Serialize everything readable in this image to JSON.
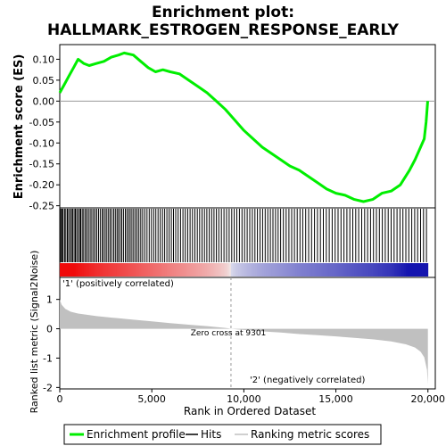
{
  "chart_data": {
    "type": "line",
    "title": "Enrichment plot:\nHALLMARK_ESTROGEN_RESPONSE_EARLY",
    "title_lines": [
      "Enrichment plot:",
      "HALLMARK_ESTROGEN_RESPONSE_EARLY"
    ],
    "top_panel": {
      "ylabel": "Enrichment score (ES)",
      "ylim": [
        -0.255,
        0.135
      ],
      "yticks": [
        0.1,
        0.05,
        0.0,
        -0.05,
        -0.1,
        -0.15,
        -0.2,
        -0.25
      ],
      "ytick_labels": [
        "0.10",
        "0.05",
        "0.00",
        "-0.05",
        "-0.10",
        "-0.15",
        "-0.20",
        "-0.25"
      ],
      "series": [
        {
          "name": "Enrichment profile",
          "color": "#00ee00",
          "x": [
            0,
            250,
            500,
            750,
            1000,
            1300,
            1600,
            2000,
            2400,
            2800,
            3200,
            3500,
            4000,
            4400,
            4800,
            5200,
            5600,
            6000,
            6500,
            7000,
            7500,
            8000,
            8500,
            9000,
            9500,
            10000,
            10500,
            11000,
            11500,
            12000,
            12500,
            13000,
            13500,
            14000,
            14500,
            15000,
            15500,
            16000,
            16500,
            17000,
            17500,
            18000,
            18500,
            19000,
            19300,
            19600,
            19800,
            19900,
            19990
          ],
          "values": [
            0.02,
            0.04,
            0.06,
            0.08,
            0.1,
            0.09,
            0.085,
            0.09,
            0.095,
            0.105,
            0.11,
            0.115,
            0.11,
            0.095,
            0.08,
            0.07,
            0.075,
            0.07,
            0.065,
            0.05,
            0.035,
            0.02,
            0.0,
            -0.02,
            -0.045,
            -0.07,
            -0.09,
            -0.11,
            -0.125,
            -0.14,
            -0.155,
            -0.165,
            -0.18,
            -0.195,
            -0.21,
            -0.22,
            -0.225,
            -0.235,
            -0.24,
            -0.235,
            -0.22,
            -0.215,
            -0.2,
            -0.165,
            -0.14,
            -0.11,
            -0.09,
            -0.05,
            0.0
          ]
        }
      ]
    },
    "hits": {
      "label": "Hits",
      "color": "#000000",
      "positions": [
        20,
        60,
        120,
        180,
        260,
        330,
        410,
        480,
        560,
        640,
        700,
        780,
        850,
        920,
        1000,
        1080,
        1140,
        1220,
        1300,
        1390,
        1470,
        1560,
        1650,
        1740,
        1830,
        1920,
        2010,
        2110,
        2200,
        2300,
        2380,
        2470,
        2560,
        2650,
        2740,
        2830,
        2930,
        3020,
        3110,
        3190,
        3280,
        3370,
        3460,
        3560,
        3650,
        3740,
        3830,
        3920,
        4010,
        4110,
        4200,
        4300,
        4400,
        4500,
        4620,
        4740,
        4860,
        4980,
        5100,
        5220,
        5340,
        5460,
        5580,
        5700,
        5820,
        5940,
        6060,
        6180,
        6300,
        6430,
        6560,
        6690,
        6820,
        6950,
        7080,
        7210,
        7340,
        7470,
        7600,
        7730,
        7860,
        7990,
        8120,
        8250,
        8380,
        8510,
        8640,
        8780,
        8920,
        9060,
        9200,
        9340,
        9480,
        9620,
        9760,
        9900,
        10040,
        10180,
        10320,
        10460,
        10600,
        10740,
        10880,
        11020,
        11160,
        11300,
        11440,
        11580,
        11720,
        11860,
        12000,
        12150,
        12300,
        12450,
        12600,
        12750,
        12900,
        13050,
        13200,
        13360,
        13520,
        13680,
        13840,
        14000,
        14160,
        14320,
        14480,
        14640,
        14800,
        14960,
        15120,
        15280,
        15440,
        15600,
        15760,
        15920,
        16080,
        16240,
        16400,
        16560,
        16720,
        16880,
        17040,
        17200,
        17360,
        17520,
        17680,
        17840,
        18000,
        18160,
        18320,
        18480,
        18640,
        18800,
        18960,
        19120,
        19280,
        19440,
        19600,
        19760,
        19920
      ]
    },
    "ranking": {
      "ylabel": "Ranked list metric (Signal2Noise)",
      "xlabel": "Rank in Ordered Dataset",
      "ylim": [
        -2.05,
        1.75
      ],
      "yticks": [
        1,
        0,
        -1,
        -2
      ],
      "ytick_labels": [
        "1",
        "0",
        "-1",
        "-2"
      ],
      "xlim": [
        0,
        20400
      ],
      "xticks": [
        0,
        5000,
        10000,
        15000,
        20000
      ],
      "xtick_labels": [
        "0",
        "5,000",
        "10,000",
        "15,000",
        "20,000"
      ],
      "n_genes": 20000,
      "fill_color": "#c0c0c0",
      "metric_x": [
        0,
        100,
        300,
        600,
        1000,
        2000,
        3000,
        4000,
        5000,
        6000,
        7000,
        8000,
        9000,
        9301,
        10000,
        11000,
        12000,
        13000,
        14000,
        15000,
        16000,
        17000,
        18000,
        18800,
        19300,
        19600,
        19800,
        19950,
        20000
      ],
      "metric_y": [
        1.0,
        0.82,
        0.68,
        0.58,
        0.52,
        0.43,
        0.37,
        0.31,
        0.25,
        0.19,
        0.14,
        0.09,
        0.03,
        0.0,
        -0.04,
        -0.09,
        -0.13,
        -0.18,
        -0.22,
        -0.26,
        -0.31,
        -0.36,
        -0.43,
        -0.53,
        -0.64,
        -0.78,
        -0.97,
        -1.4,
        -1.9
      ],
      "zero_cross": {
        "x": 9301,
        "label": "Zero cross at 9301"
      },
      "pos_label": "'1' (positively correlated)",
      "neg_label": "'2' (negatively correlated)",
      "pos_label_color": "#ff0000",
      "neg_label_color": "#0000cc"
    },
    "legend": {
      "position": "bottom",
      "items": [
        {
          "label": "Enrichment profile",
          "color": "#00ee00",
          "kind": "line"
        },
        {
          "label": "Hits",
          "color": "#000000",
          "kind": "line"
        },
        {
          "label": "Ranking metric scores",
          "color": "#c0c0c0",
          "kind": "line"
        }
      ]
    }
  }
}
